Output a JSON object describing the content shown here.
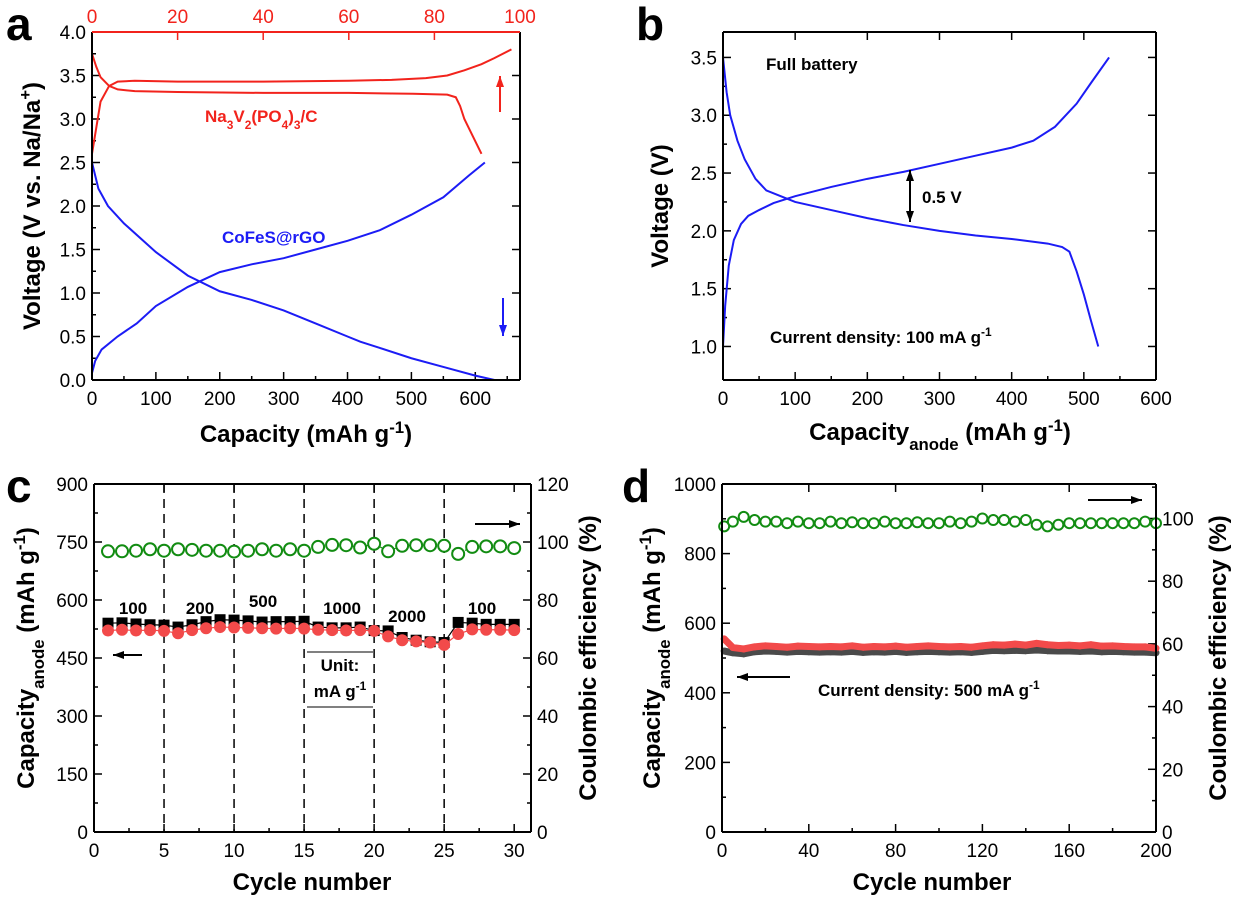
{
  "colors": {
    "red": "#f2231c",
    "blue": "#1c1cf5",
    "green": "#128c12",
    "black": "#000000",
    "dark": "#4a4a4a",
    "red_marker": "#f24a4a"
  },
  "chart_data": [
    {
      "panel": "a",
      "type": "line",
      "x": {
        "label": [
          [
            "Capacity (mAh g"
          ],
          [
            "-1",
            "sup"
          ],
          [
            ")"
          ]
        ],
        "min": 0,
        "max": 670,
        "ticks": [
          0,
          100,
          200,
          300,
          400,
          500,
          600
        ]
      },
      "x2": {
        "min": 0,
        "max": 100,
        "ticks": [
          0,
          20,
          40,
          60,
          80,
          100
        ],
        "color": "red"
      },
      "y": {
        "label": [
          [
            "Voltage (V vs. Na/Na"
          ],
          [
            "+",
            "sup"
          ],
          [
            ")"
          ]
        ],
        "min": 0,
        "max": 4,
        "ticks": [
          0,
          0.5,
          1,
          1.5,
          2,
          2.5,
          3,
          3.5,
          4
        ],
        "decimals": 1
      },
      "series": [
        {
          "name": "Na3V2(PO4)3/C charge",
          "axis": "x2",
          "color": "red",
          "x": [
            0,
            1,
            2,
            4,
            6,
            10,
            20,
            40,
            60,
            70,
            78,
            83,
            87,
            91,
            94,
            98
          ],
          "y": [
            2.6,
            2.9,
            3.2,
            3.38,
            3.43,
            3.44,
            3.43,
            3.43,
            3.44,
            3.45,
            3.47,
            3.5,
            3.56,
            3.63,
            3.7,
            3.8
          ]
        },
        {
          "name": "Na3V2(PO4)3/C discharge",
          "axis": "x2",
          "color": "red",
          "x": [
            0,
            1,
            2,
            4,
            6,
            10,
            20,
            40,
            60,
            75,
            83,
            85,
            86,
            87,
            89,
            91
          ],
          "y": [
            3.75,
            3.6,
            3.48,
            3.38,
            3.34,
            3.32,
            3.31,
            3.3,
            3.3,
            3.29,
            3.28,
            3.25,
            3.15,
            3.0,
            2.8,
            2.6
          ]
        },
        {
          "name": "CoFeS@rGO discharge",
          "axis": "x",
          "color": "blue",
          "x": [
            0,
            10,
            25,
            50,
            100,
            150,
            200,
            250,
            300,
            350,
            400,
            420,
            450,
            500,
            550,
            600,
            630
          ],
          "y": [
            2.5,
            2.2,
            2.0,
            1.8,
            1.47,
            1.2,
            1.02,
            0.92,
            0.8,
            0.65,
            0.5,
            0.44,
            0.37,
            0.25,
            0.15,
            0.05,
            0
          ]
        },
        {
          "name": "CoFeS@rGO charge",
          "axis": "x",
          "color": "blue",
          "x": [
            0,
            5,
            15,
            40,
            70,
            100,
            150,
            200,
            250,
            300,
            350,
            400,
            450,
            500,
            550,
            590,
            615
          ],
          "y": [
            0.08,
            0.22,
            0.35,
            0.5,
            0.65,
            0.85,
            1.07,
            1.24,
            1.33,
            1.4,
            1.5,
            1.6,
            1.72,
            1.9,
            2.1,
            2.35,
            2.5
          ]
        }
      ],
      "annotations": [
        {
          "text": [
            [
              "Na"
            ],
            [
              "3",
              "sub"
            ],
            [
              "V"
            ],
            [
              "2",
              "sub"
            ],
            [
              "(PO"
            ],
            [
              "4",
              "sub"
            ],
            [
              ")"
            ],
            [
              "3",
              "sub"
            ],
            [
              "/C"
            ]
          ],
          "color": "red"
        },
        {
          "text": [
            [
              "CoFeS@rGO"
            ]
          ],
          "color": "blue"
        }
      ]
    },
    {
      "panel": "b",
      "type": "line",
      "x": {
        "label": [
          [
            "Capacity"
          ],
          [
            "anode",
            "sub"
          ],
          [
            " (mAh g"
          ],
          [
            "-1",
            "sup"
          ],
          [
            ")"
          ]
        ],
        "min": 0,
        "max": 600,
        "ticks": [
          0,
          100,
          200,
          300,
          400,
          500,
          600
        ]
      },
      "y": {
        "label": [
          [
            "Voltage (V)"
          ]
        ],
        "min": 0.71,
        "max": 3.72,
        "ticks": [
          1,
          1.5,
          2,
          2.5,
          3,
          3.5
        ],
        "decimals": 1
      },
      "series": [
        {
          "name": "Full battery discharge",
          "axis": "x",
          "color": "blue",
          "x": [
            0,
            5,
            10,
            20,
            30,
            45,
            60,
            80,
            100,
            150,
            200,
            250,
            300,
            350,
            400,
            450,
            470,
            480,
            490,
            500,
            510,
            520
          ],
          "y": [
            3.5,
            3.2,
            3.0,
            2.78,
            2.62,
            2.45,
            2.35,
            2.3,
            2.25,
            2.18,
            2.11,
            2.05,
            2.0,
            1.96,
            1.93,
            1.89,
            1.86,
            1.82,
            1.65,
            1.45,
            1.22,
            1.0
          ]
        },
        {
          "name": "Full battery charge",
          "axis": "x",
          "color": "blue",
          "x": [
            0,
            3,
            8,
            15,
            25,
            35,
            50,
            70,
            100,
            150,
            200,
            250,
            300,
            350,
            400,
            430,
            460,
            490,
            510,
            535
          ],
          "y": [
            1.0,
            1.35,
            1.7,
            1.92,
            2.06,
            2.13,
            2.18,
            2.24,
            2.3,
            2.38,
            2.45,
            2.51,
            2.58,
            2.65,
            2.72,
            2.78,
            2.9,
            3.1,
            3.28,
            3.5
          ]
        }
      ],
      "annotations": [
        {
          "text": [
            [
              "Full battery"
            ]
          ],
          "color": "black"
        },
        {
          "text": [
            [
              "0.5 V"
            ]
          ],
          "color": "black"
        },
        {
          "text": [
            [
              "Current density: 100 mA g"
            ],
            [
              "-1",
              "sup"
            ]
          ],
          "color": "black"
        }
      ]
    },
    {
      "panel": "c",
      "type": "scatter",
      "x": {
        "label": [
          [
            "Cycle number"
          ]
        ],
        "min": 0,
        "max": 31.2,
        "ticks": [
          0,
          5,
          10,
          15,
          20,
          25,
          30
        ]
      },
      "y": {
        "label": [
          [
            "Capacity"
          ],
          [
            "anode",
            "sub"
          ],
          [
            " (mAh g"
          ],
          [
            "-1",
            "sup"
          ],
          [
            ")"
          ]
        ],
        "min": 0,
        "max": 900,
        "ticks": [
          0,
          150,
          300,
          450,
          600,
          750,
          900
        ]
      },
      "y2": {
        "label": [
          [
            "Coulombic efficiency (%)"
          ]
        ],
        "min": 0,
        "max": 120,
        "ticks": [
          0,
          20,
          40,
          60,
          80,
          100,
          120
        ]
      },
      "dividers": [
        5,
        10,
        15,
        20,
        25
      ],
      "rate_labels": [
        "100",
        "200",
        "500",
        "1000",
        "2000",
        "100"
      ],
      "unit_label": [
        [
          [
            "Unit:"
          ]
        ],
        [
          [
            "mA g"
          ],
          [
            "-1",
            "sup"
          ]
        ]
      ],
      "series": [
        {
          "name": "Charge capacity",
          "axis": "y",
          "color": "black",
          "marker": "square",
          "x": [
            1,
            2,
            3,
            4,
            5,
            6,
            7,
            8,
            9,
            10,
            11,
            12,
            13,
            14,
            15,
            16,
            17,
            18,
            19,
            20,
            21,
            22,
            23,
            24,
            25,
            26,
            27,
            28,
            29,
            30
          ],
          "y": [
            540,
            541,
            538,
            536,
            535,
            530,
            536,
            544,
            549,
            548,
            546,
            543,
            544,
            544,
            545,
            530,
            528,
            528,
            530,
            521,
            520,
            503,
            496,
            492,
            490,
            542,
            540,
            537,
            537,
            537
          ]
        },
        {
          "name": "Discharge capacity",
          "axis": "y",
          "color": "red_marker",
          "marker": "circle",
          "x": [
            1,
            2,
            3,
            4,
            5,
            6,
            7,
            8,
            9,
            10,
            11,
            12,
            13,
            14,
            15,
            16,
            17,
            18,
            19,
            20,
            21,
            22,
            23,
            24,
            25,
            26,
            27,
            28,
            29,
            30
          ],
          "y": [
            521,
            523,
            521,
            522,
            520,
            514,
            522,
            527,
            530,
            529,
            528,
            527,
            526,
            527,
            526,
            523,
            522,
            521,
            522,
            520,
            506,
            496,
            493,
            490,
            484,
            512,
            524,
            523,
            523,
            522
          ]
        },
        {
          "name": "Coulombic efficiency",
          "axis": "y2",
          "color": "green",
          "marker": "open-circle",
          "x": [
            1,
            2,
            3,
            4,
            5,
            6,
            7,
            8,
            9,
            10,
            11,
            12,
            13,
            14,
            15,
            16,
            17,
            18,
            19,
            20,
            21,
            22,
            23,
            24,
            25,
            26,
            27,
            28,
            29,
            30
          ],
          "y": [
            96.8,
            96.8,
            97.0,
            97.5,
            97.0,
            97.5,
            97.3,
            97.0,
            97.0,
            96.7,
            97.0,
            97.5,
            97.0,
            97.5,
            97.0,
            98.3,
            99.0,
            98.9,
            98.1,
            99.4,
            96.8,
            98.7,
            98.9,
            98.9,
            98.7,
            95.9,
            98.3,
            98.5,
            98.5,
            97.9
          ]
        }
      ]
    },
    {
      "panel": "d",
      "type": "scatter",
      "x": {
        "label": [
          [
            "Cycle number"
          ]
        ],
        "min": 0,
        "max": 200,
        "ticks": [
          0,
          40,
          80,
          120,
          160,
          200
        ]
      },
      "y": {
        "label": [
          [
            "Capacity"
          ],
          [
            "anode",
            "sub"
          ],
          [
            " (mAh g"
          ],
          [
            "-1",
            "sup"
          ],
          [
            ")"
          ]
        ],
        "min": 0,
        "max": 1000,
        "ticks": [
          0,
          200,
          400,
          600,
          800,
          1000
        ]
      },
      "y2": {
        "label": [
          [
            "Coulombic efficiency (%)"
          ]
        ],
        "min": 0,
        "max": 111,
        "ticks": [
          0,
          20,
          40,
          60,
          80,
          100
        ]
      },
      "series": [
        {
          "name": "Charge capacity",
          "axis": "y",
          "color": "dark",
          "marker": "band",
          "x": [
            1,
            5,
            10,
            15,
            20,
            25,
            30,
            35,
            40,
            45,
            50,
            55,
            60,
            65,
            70,
            75,
            80,
            85,
            90,
            95,
            100,
            105,
            110,
            115,
            120,
            125,
            130,
            135,
            140,
            145,
            150,
            155,
            160,
            165,
            170,
            175,
            180,
            185,
            190,
            195,
            200
          ],
          "y": [
            520,
            515,
            512,
            518,
            520,
            519,
            517,
            519,
            518,
            517,
            518,
            517,
            519,
            516,
            518,
            517,
            519,
            516,
            518,
            519,
            518,
            517,
            518,
            516,
            519,
            522,
            521,
            522,
            521,
            523,
            521,
            520,
            520,
            519,
            520,
            518,
            519,
            518,
            517,
            517,
            515
          ]
        },
        {
          "name": "Discharge capacity",
          "axis": "y",
          "color": "red_marker",
          "marker": "band",
          "x": [
            1,
            5,
            10,
            15,
            20,
            25,
            30,
            35,
            40,
            45,
            50,
            55,
            60,
            65,
            70,
            75,
            80,
            85,
            90,
            95,
            100,
            105,
            110,
            115,
            120,
            125,
            130,
            135,
            140,
            145,
            150,
            155,
            160,
            165,
            170,
            175,
            180,
            185,
            190,
            195,
            200
          ],
          "y": [
            555,
            530,
            526,
            532,
            535,
            533,
            531,
            534,
            533,
            532,
            533,
            532,
            535,
            531,
            533,
            532,
            534,
            531,
            533,
            535,
            533,
            532,
            533,
            531,
            535,
            538,
            537,
            540,
            537,
            542,
            538,
            536,
            537,
            535,
            538,
            534,
            535,
            533,
            532,
            532,
            528
          ]
        },
        {
          "name": "Coulombic efficiency",
          "axis": "y2",
          "color": "green",
          "marker": "open-circle",
          "x": [
            1,
            5,
            10,
            15,
            20,
            25,
            30,
            35,
            40,
            45,
            50,
            55,
            60,
            65,
            70,
            75,
            80,
            85,
            90,
            95,
            100,
            105,
            110,
            115,
            120,
            125,
            130,
            135,
            140,
            145,
            150,
            155,
            160,
            165,
            170,
            175,
            180,
            185,
            190,
            195,
            200
          ],
          "y": [
            97.5,
            99,
            100.5,
            99.5,
            99,
            99,
            98.5,
            99,
            98.5,
            98.5,
            99,
            98.5,
            98.8,
            98.5,
            98.5,
            99,
            98.5,
            98.5,
            98.8,
            98.5,
            98.5,
            99,
            98.5,
            99,
            100,
            99.5,
            99.5,
            99,
            99.5,
            98,
            97.5,
            98,
            98.5,
            98.5,
            98.5,
            98.5,
            98.5,
            98.5,
            98.5,
            99,
            98.5
          ]
        }
      ],
      "annotations": [
        {
          "text": [
            [
              "Current density: 500 mA g"
            ],
            [
              "-1",
              "sup"
            ]
          ],
          "color": "black"
        }
      ]
    }
  ]
}
